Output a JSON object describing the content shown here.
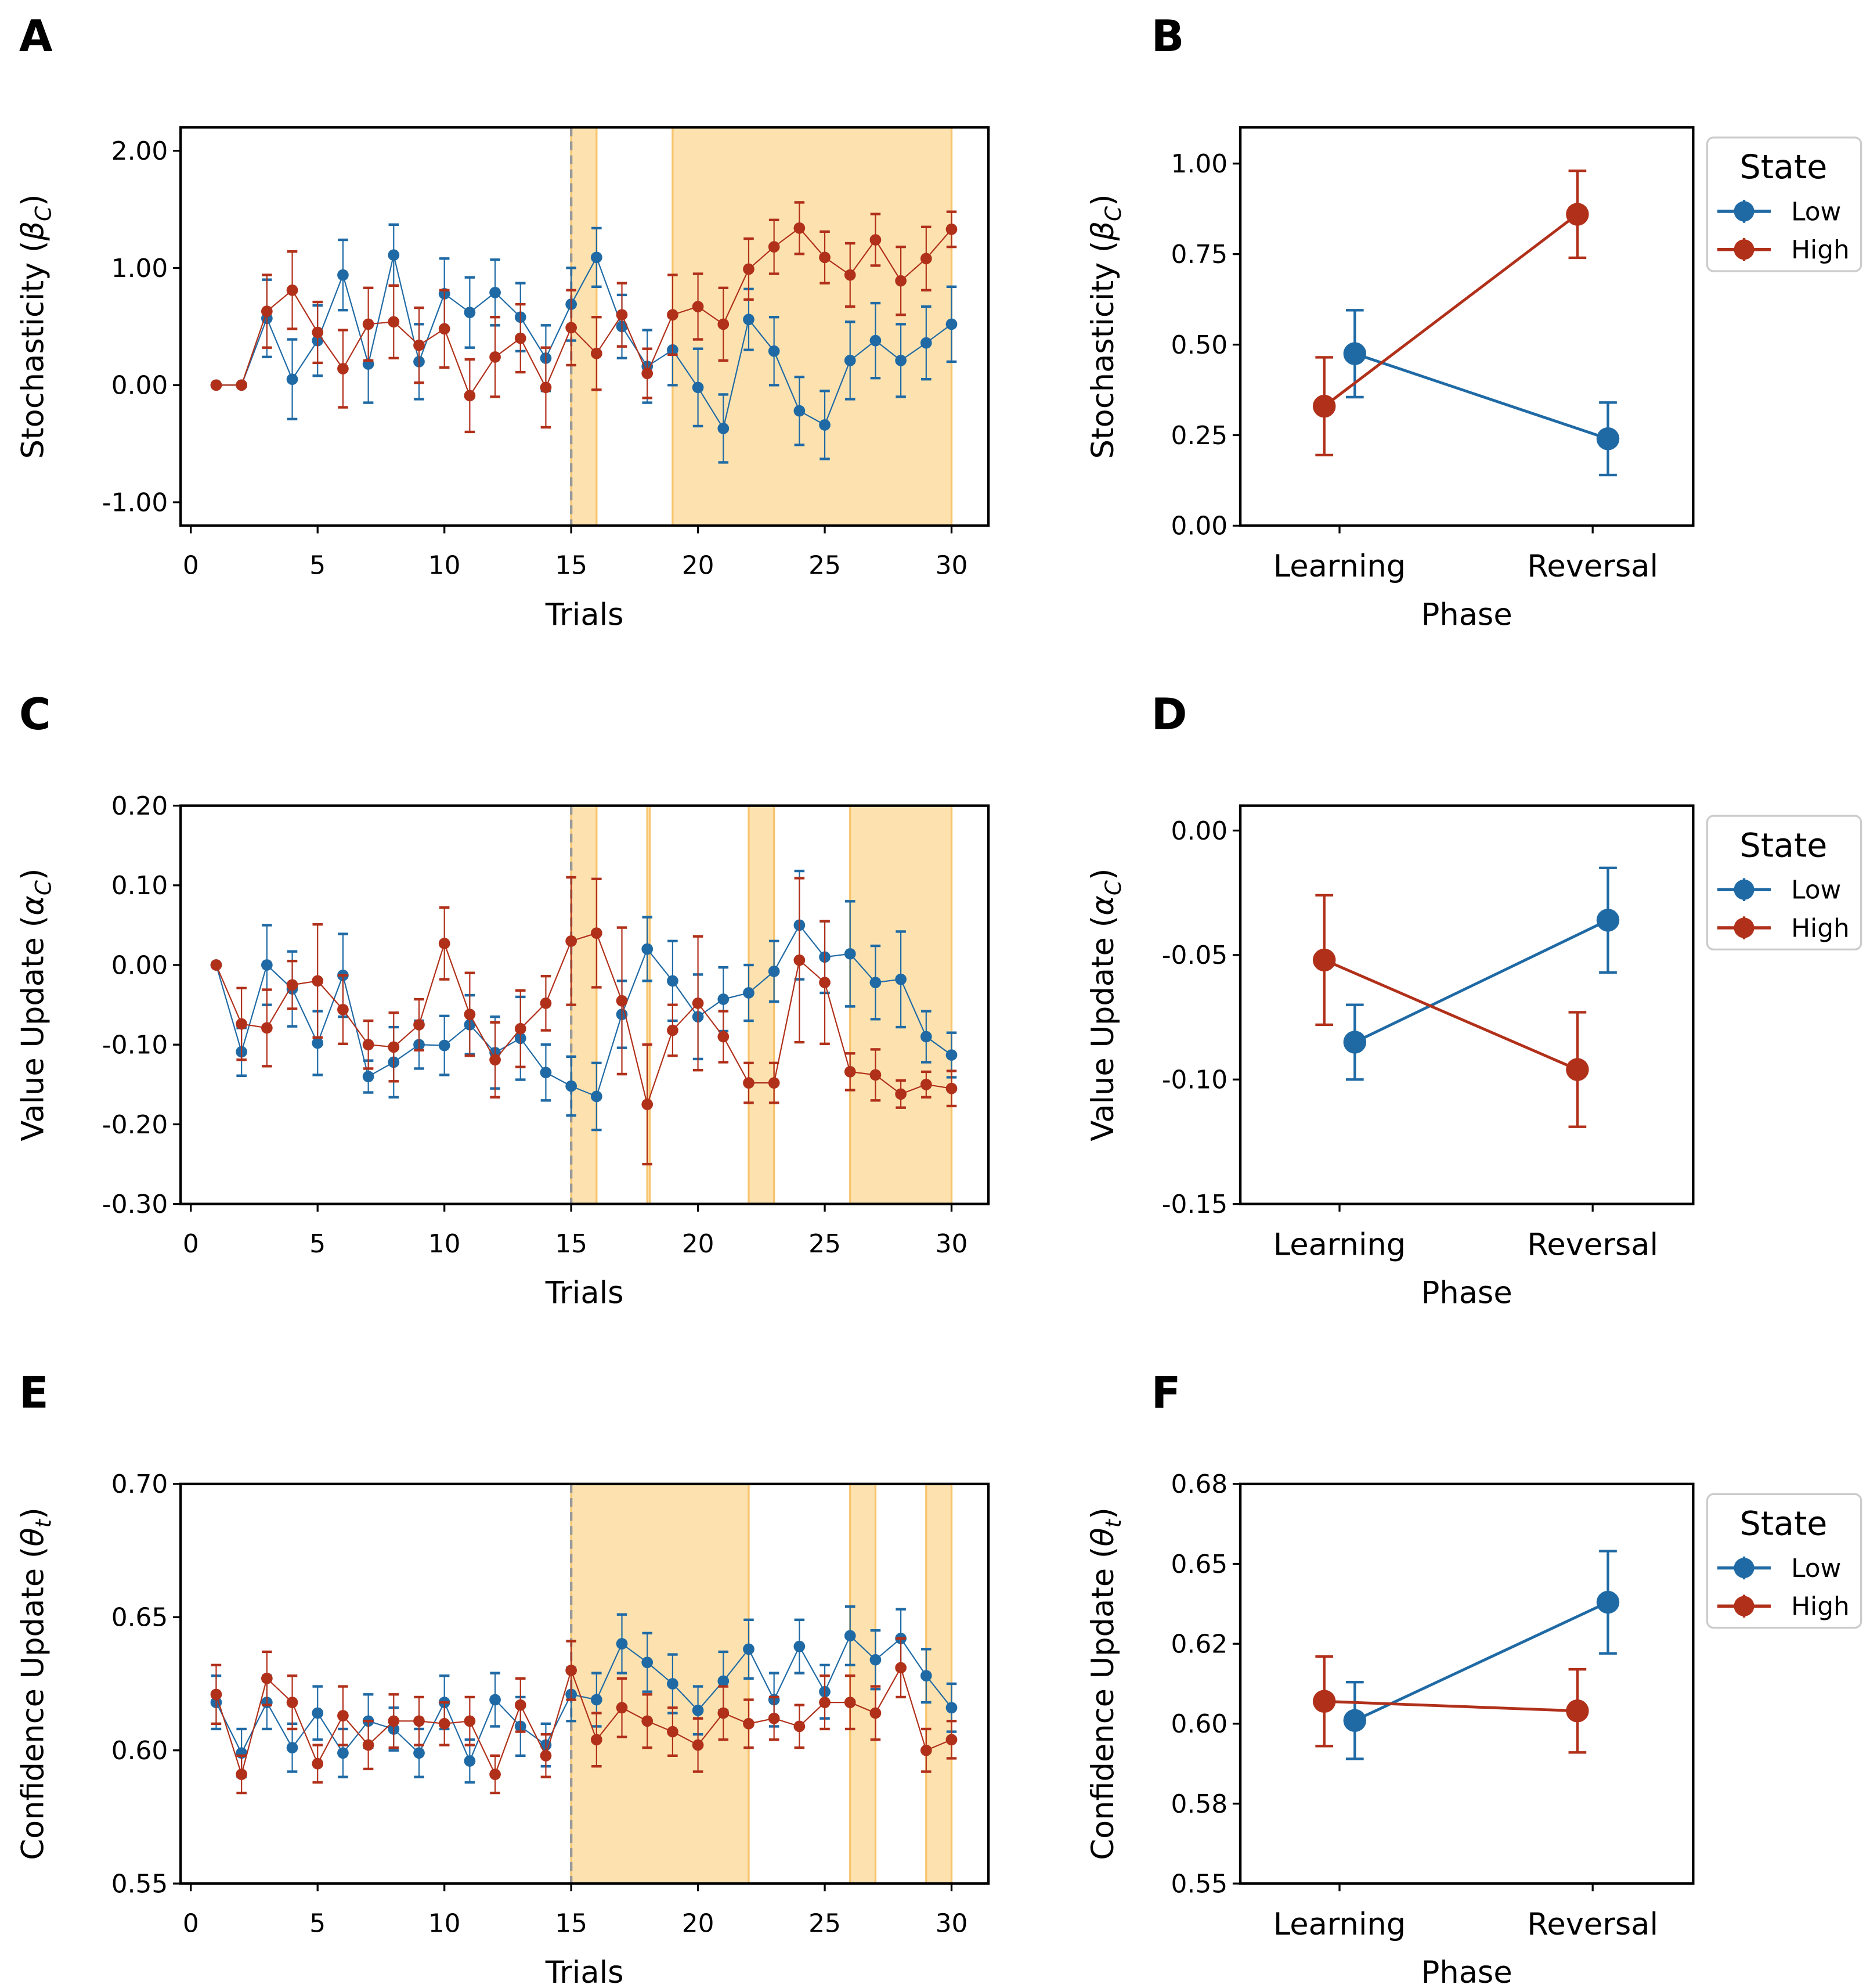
{
  "colors": {
    "Low": "#1f6aa5",
    "High": "#b1301a",
    "shade": "#fde2b0",
    "shade_edge": "#f8c46e",
    "dashed": "#9a9a9a"
  },
  "chart_data": [
    {
      "panel": "A",
      "type": "line",
      "xlabel": "Trials",
      "ylabel": "Stochasticity (β_C)",
      "xlim": [
        0,
        30
      ],
      "ylim": [
        -1.2,
        2.2
      ],
      "xticks": [
        0,
        5,
        10,
        15,
        20,
        25,
        30
      ],
      "xtick_labels": [
        "0",
        "5",
        "10",
        "15",
        "20",
        "25",
        "30"
      ],
      "yticks": [
        -1,
        0,
        1,
        2
      ],
      "ytick_labels": [
        "-1.00",
        "0.00",
        "1.00",
        "2.00"
      ],
      "vline": 15,
      "shaded": [
        [
          15,
          16
        ],
        [
          19,
          30
        ]
      ],
      "x": [
        1,
        2,
        3,
        4,
        5,
        6,
        7,
        8,
        9,
        10,
        11,
        12,
        13,
        14,
        15,
        16,
        17,
        18,
        19,
        20,
        21,
        22,
        23,
        24,
        25,
        26,
        27,
        28,
        29,
        30
      ],
      "series": [
        {
          "name": "Low",
          "values": [
            0,
            0,
            0.57,
            0.05,
            0.38,
            0.94,
            0.18,
            1.11,
            0.2,
            0.78,
            0.62,
            0.79,
            0.58,
            0.23,
            0.69,
            1.09,
            0.5,
            0.16,
            0.3,
            -0.02,
            -0.37,
            0.56,
            0.29,
            -0.22,
            -0.34,
            0.21,
            0.38,
            0.21,
            0.36,
            0.52
          ],
          "errors": [
            0,
            0,
            0.33,
            0.34,
            0.3,
            0.3,
            0.33,
            0.26,
            0.32,
            0.3,
            0.3,
            0.28,
            0.29,
            0.28,
            0.31,
            0.25,
            0.27,
            0.31,
            0.3,
            0.33,
            0.29,
            0.26,
            0.29,
            0.29,
            0.29,
            0.33,
            0.32,
            0.31,
            0.31,
            0.32
          ]
        },
        {
          "name": "High",
          "values": [
            0,
            0,
            0.63,
            0.81,
            0.45,
            0.14,
            0.52,
            0.54,
            0.34,
            0.48,
            -0.09,
            0.24,
            0.4,
            -0.02,
            0.49,
            0.27,
            0.6,
            0.1,
            0.6,
            0.67,
            0.52,
            0.99,
            1.18,
            1.34,
            1.09,
            0.94,
            1.24,
            0.89,
            1.08,
            1.33
          ],
          "errors": [
            0,
            0,
            0.31,
            0.33,
            0.26,
            0.33,
            0.31,
            0.31,
            0.32,
            0.33,
            0.31,
            0.34,
            0.29,
            0.34,
            0.32,
            0.31,
            0.27,
            0.21,
            0.34,
            0.28,
            0.31,
            0.26,
            0.23,
            0.22,
            0.22,
            0.27,
            0.22,
            0.29,
            0.27,
            0.15
          ]
        }
      ]
    },
    {
      "panel": "B",
      "type": "line",
      "xlabel": "Phase",
      "ylabel": "Stochasticity (β_C)",
      "categories": [
        "Learning",
        "Reversal"
      ],
      "ylim": [
        0,
        1.1
      ],
      "yticks": [
        0,
        0.25,
        0.5,
        0.75,
        1.0
      ],
      "ytick_labels": [
        "0.00",
        "0.25",
        "0.50",
        "0.75",
        "1.00"
      ],
      "legend": {
        "title": "State",
        "placement": "outside-right"
      },
      "series": [
        {
          "name": "Low",
          "values": [
            0.475,
            0.24
          ],
          "errors": [
            0.12,
            0.1
          ]
        },
        {
          "name": "High",
          "values": [
            0.33,
            0.86
          ],
          "errors": [
            0.135,
            0.12
          ]
        }
      ]
    },
    {
      "panel": "C",
      "type": "line",
      "xlabel": "Trials",
      "ylabel": "Value Update (α_C)",
      "xlim": [
        0,
        30
      ],
      "ylim": [
        -0.3,
        0.2
      ],
      "xticks": [
        0,
        5,
        10,
        15,
        20,
        25,
        30
      ],
      "xtick_labels": [
        "0",
        "5",
        "10",
        "15",
        "20",
        "25",
        "30"
      ],
      "yticks": [
        -0.3,
        -0.2,
        -0.1,
        0,
        0.1,
        0.2
      ],
      "ytick_labels": [
        "-0.30",
        "-0.20",
        "-0.10",
        "0.00",
        "0.10",
        "0.20"
      ],
      "vline": 15,
      "shaded": [
        [
          15,
          16
        ],
        [
          18,
          18
        ],
        [
          22,
          23
        ],
        [
          26,
          30
        ]
      ],
      "x": [
        1,
        2,
        3,
        4,
        5,
        6,
        7,
        8,
        9,
        10,
        11,
        12,
        13,
        14,
        15,
        16,
        17,
        18,
        19,
        20,
        21,
        22,
        23,
        24,
        25,
        26,
        27,
        28,
        29,
        30
      ],
      "series": [
        {
          "name": "Low",
          "values": [
            0,
            -0.109,
            0,
            -0.03,
            -0.098,
            -0.013,
            -0.14,
            -0.122,
            -0.1,
            -0.101,
            -0.075,
            -0.11,
            -0.092,
            -0.135,
            -0.152,
            -0.165,
            -0.062,
            0.02,
            -0.02,
            -0.065,
            -0.043,
            -0.035,
            -0.008,
            0.05,
            0.01,
            0.014,
            -0.022,
            -0.018,
            -0.09,
            -0.113
          ],
          "errors": [
            0,
            0.03,
            0.05,
            0.047,
            0.04,
            0.052,
            0.02,
            0.044,
            0.03,
            0.037,
            0.037,
            0.045,
            0.052,
            0.035,
            0.037,
            0.042,
            0.042,
            0.04,
            0.05,
            0.053,
            0.04,
            0.035,
            0.038,
            0.068,
            0.045,
            0.066,
            0.046,
            0.06,
            0.032,
            0.028
          ]
        },
        {
          "name": "High",
          "values": [
            0,
            -0.074,
            -0.079,
            -0.025,
            -0.02,
            -0.056,
            -0.1,
            -0.103,
            -0.075,
            0.027,
            -0.062,
            -0.119,
            -0.08,
            -0.048,
            0.03,
            0.04,
            -0.045,
            -0.175,
            -0.082,
            -0.048,
            -0.09,
            -0.148,
            -0.148,
            0.006,
            -0.022,
            -0.134,
            -0.138,
            -0.162,
            -0.15,
            -0.155
          ],
          "errors": [
            0,
            0.045,
            0.048,
            0.03,
            0.071,
            0.043,
            0.03,
            0.043,
            0.032,
            0.045,
            0.052,
            0.047,
            0.048,
            0.034,
            0.08,
            0.068,
            0.092,
            0.075,
            0.032,
            0.084,
            0.032,
            0.025,
            0.025,
            0.103,
            0.077,
            0.023,
            0.032,
            0.017,
            0.016,
            0.022
          ]
        }
      ]
    },
    {
      "panel": "D",
      "type": "line",
      "xlabel": "Phase",
      "ylabel": "Value Update (α_C)",
      "categories": [
        "Learning",
        "Reversal"
      ],
      "ylim": [
        -0.15,
        0.01
      ],
      "yticks": [
        -0.15,
        -0.1,
        -0.05,
        0
      ],
      "ytick_labels": [
        "-0.15",
        "-0.10",
        "-0.05",
        "0.00"
      ],
      "legend": {
        "title": "State",
        "placement": "outside-right"
      },
      "series": [
        {
          "name": "Low",
          "values": [
            -0.085,
            -0.036
          ],
          "errors": [
            0.015,
            0.021
          ]
        },
        {
          "name": "High",
          "values": [
            -0.052,
            -0.096
          ],
          "errors": [
            0.026,
            0.023
          ]
        }
      ]
    },
    {
      "panel": "E",
      "type": "line",
      "xlabel": "Trials",
      "ylabel": "Confidence Update (θ_t)",
      "xlim": [
        0,
        30
      ],
      "ylim": [
        0.55,
        0.7
      ],
      "xticks": [
        0,
        5,
        10,
        15,
        20,
        25,
        30
      ],
      "xtick_labels": [
        "0",
        "5",
        "10",
        "15",
        "20",
        "25",
        "30"
      ],
      "yticks": [
        0.55,
        0.6,
        0.65,
        0.7
      ],
      "ytick_labels": [
        "0.55",
        "0.60",
        "0.65",
        "0.70"
      ],
      "vline": 15,
      "shaded": [
        [
          15,
          22
        ],
        [
          26,
          27
        ],
        [
          29,
          30
        ]
      ],
      "x": [
        1,
        2,
        3,
        4,
        5,
        6,
        7,
        8,
        9,
        10,
        11,
        12,
        13,
        14,
        15,
        16,
        17,
        18,
        19,
        20,
        21,
        22,
        23,
        24,
        25,
        26,
        27,
        28,
        29,
        30
      ],
      "series": [
        {
          "name": "Low",
          "values": [
            0.618,
            0.599,
            0.618,
            0.601,
            0.614,
            0.599,
            0.611,
            0.608,
            0.599,
            0.618,
            0.596,
            0.619,
            0.609,
            0.602,
            0.621,
            0.619,
            0.64,
            0.633,
            0.625,
            0.615,
            0.626,
            0.638,
            0.619,
            0.639,
            0.622,
            0.643,
            0.634,
            0.642,
            0.628,
            0.616
          ],
          "errors": [
            0.01,
            0.009,
            0.01,
            0.009,
            0.01,
            0.009,
            0.01,
            0.008,
            0.009,
            0.01,
            0.008,
            0.01,
            0.011,
            0.008,
            0.01,
            0.01,
            0.011,
            0.011,
            0.011,
            0.009,
            0.011,
            0.011,
            0.01,
            0.01,
            0.01,
            0.011,
            0.011,
            0.011,
            0.01,
            0.009
          ]
        },
        {
          "name": "High",
          "values": [
            0.621,
            0.591,
            0.627,
            0.618,
            0.595,
            0.613,
            0.602,
            0.611,
            0.611,
            0.61,
            0.611,
            0.591,
            0.617,
            0.598,
            0.63,
            0.604,
            0.616,
            0.611,
            0.607,
            0.602,
            0.614,
            0.61,
            0.612,
            0.609,
            0.618,
            0.618,
            0.614,
            0.631,
            0.6,
            0.604
          ],
          "errors": [
            0.011,
            0.007,
            0.01,
            0.01,
            0.007,
            0.011,
            0.009,
            0.01,
            0.009,
            0.008,
            0.009,
            0.007,
            0.01,
            0.008,
            0.011,
            0.01,
            0.011,
            0.01,
            0.009,
            0.01,
            0.01,
            0.009,
            0.008,
            0.008,
            0.01,
            0.01,
            0.01,
            0.011,
            0.008,
            0.007
          ]
        }
      ]
    },
    {
      "panel": "F",
      "type": "line",
      "xlabel": "Phase",
      "ylabel": "Confidence Update (θ_t)",
      "categories": [
        "Learning",
        "Reversal"
      ],
      "ylim": [
        0.55,
        0.675
      ],
      "yticks": [
        0.55,
        0.575,
        0.6,
        0.625,
        0.65,
        0.675
      ],
      "ytick_labels": [
        "0.55",
        "0.58",
        "0.60",
        "0.62",
        "0.65",
        "0.68"
      ],
      "legend": {
        "title": "State",
        "placement": "outside-right"
      },
      "series": [
        {
          "name": "Low",
          "values": [
            0.601,
            0.638
          ],
          "errors": [
            0.012,
            0.016
          ]
        },
        {
          "name": "High",
          "values": [
            0.607,
            0.604
          ],
          "errors": [
            0.014,
            0.013
          ]
        }
      ]
    }
  ]
}
